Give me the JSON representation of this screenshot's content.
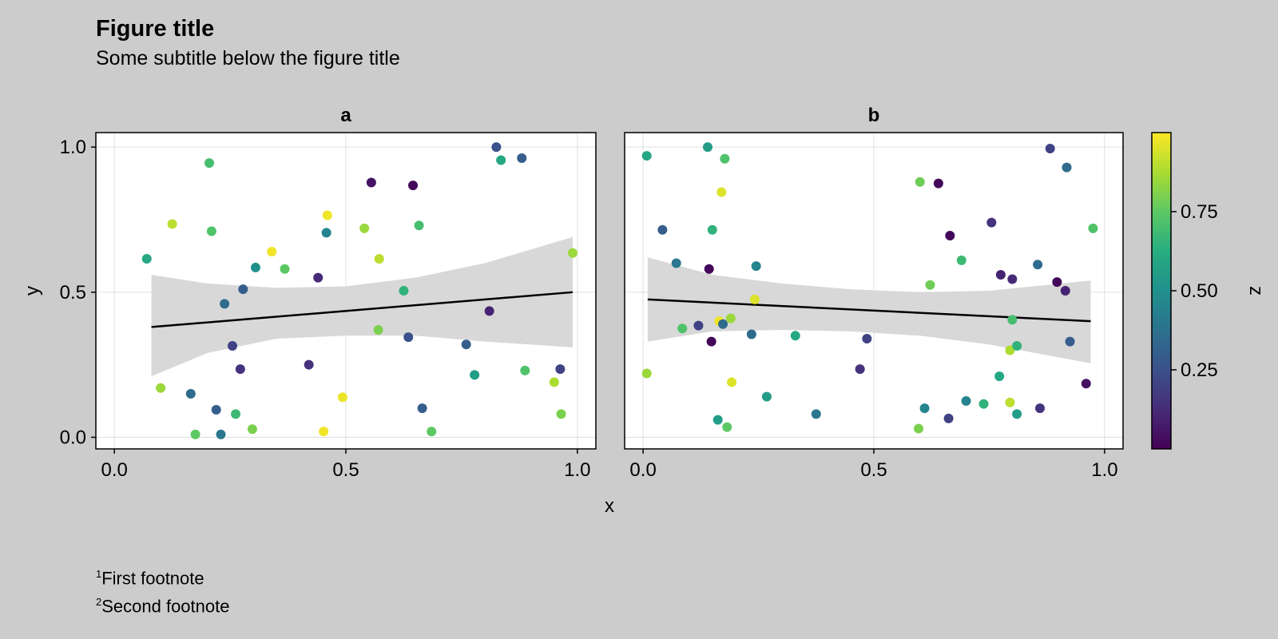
{
  "figure": {
    "title": "Figure title",
    "subtitle": "Some subtitle below the figure title",
    "footnotes": [
      {
        "mark": "1",
        "text": "First footnote"
      },
      {
        "mark": "2",
        "text": "Second footnote"
      }
    ]
  },
  "chart_data": {
    "type": "scatter",
    "xlabel": "x",
    "ylabel": "y",
    "xlim": [
      -0.04,
      1.04
    ],
    "ylim": [
      -0.04,
      1.05
    ],
    "xticks": [
      "0.0",
      "0.5",
      "1.0"
    ],
    "yticks": [
      "0.0",
      "0.5",
      "1.0"
    ],
    "xtick_values": [
      0,
      0.5,
      1
    ],
    "ytick_values": [
      0,
      0.5,
      1
    ],
    "grid": true,
    "colormap": {
      "name": "viridis",
      "label": "z",
      "range": [
        0,
        1
      ],
      "ticks": [
        "0.25",
        "0.50",
        "0.75"
      ],
      "tick_values": [
        0.25,
        0.5,
        0.75
      ],
      "stops": [
        "#440154",
        "#472c7a",
        "#3b518b",
        "#2c718e",
        "#21908d",
        "#27ad81",
        "#5cc863",
        "#aadc32",
        "#fde725"
      ]
    },
    "panels": [
      {
        "title": "a",
        "fit": {
          "x": [
            0.08,
            0.99
          ],
          "y": [
            0.38,
            0.5
          ]
        },
        "band_x": [
          0.08,
          0.2,
          0.35,
          0.5,
          0.65,
          0.8,
          0.99
        ],
        "band_upper": [
          0.56,
          0.53,
          0.515,
          0.52,
          0.55,
          0.6,
          0.69
        ],
        "band_lower": [
          0.21,
          0.29,
          0.34,
          0.35,
          0.35,
          0.33,
          0.31
        ],
        "points": [
          {
            "x": 0.07,
            "y": 0.615,
            "z": 0.6
          },
          {
            "x": 0.1,
            "y": 0.17,
            "z": 0.85
          },
          {
            "x": 0.125,
            "y": 0.735,
            "z": 0.9
          },
          {
            "x": 0.165,
            "y": 0.15,
            "z": 0.35
          },
          {
            "x": 0.175,
            "y": 0.01,
            "z": 0.75
          },
          {
            "x": 0.205,
            "y": 0.945,
            "z": 0.7
          },
          {
            "x": 0.21,
            "y": 0.71,
            "z": 0.72
          },
          {
            "x": 0.22,
            "y": 0.095,
            "z": 0.3
          },
          {
            "x": 0.23,
            "y": 0.01,
            "z": 0.4
          },
          {
            "x": 0.238,
            "y": 0.46,
            "z": 0.35
          },
          {
            "x": 0.255,
            "y": 0.315,
            "z": 0.2
          },
          {
            "x": 0.262,
            "y": 0.08,
            "z": 0.68
          },
          {
            "x": 0.272,
            "y": 0.235,
            "z": 0.15
          },
          {
            "x": 0.278,
            "y": 0.51,
            "z": 0.3
          },
          {
            "x": 0.298,
            "y": 0.028,
            "z": 0.8
          },
          {
            "x": 0.305,
            "y": 0.585,
            "z": 0.5
          },
          {
            "x": 0.34,
            "y": 0.64,
            "z": 0.98
          },
          {
            "x": 0.368,
            "y": 0.58,
            "z": 0.75
          },
          {
            "x": 0.42,
            "y": 0.25,
            "z": 0.15
          },
          {
            "x": 0.44,
            "y": 0.55,
            "z": 0.12
          },
          {
            "x": 0.452,
            "y": 0.02,
            "z": 0.98
          },
          {
            "x": 0.458,
            "y": 0.705,
            "z": 0.45
          },
          {
            "x": 0.46,
            "y": 0.765,
            "z": 0.98
          },
          {
            "x": 0.493,
            "y": 0.138,
            "z": 0.97
          },
          {
            "x": 0.54,
            "y": 0.72,
            "z": 0.85
          },
          {
            "x": 0.555,
            "y": 0.878,
            "z": 0.05
          },
          {
            "x": 0.57,
            "y": 0.37,
            "z": 0.8
          },
          {
            "x": 0.572,
            "y": 0.615,
            "z": 0.9
          },
          {
            "x": 0.625,
            "y": 0.505,
            "z": 0.65
          },
          {
            "x": 0.635,
            "y": 0.345,
            "z": 0.25
          },
          {
            "x": 0.645,
            "y": 0.868,
            "z": 0.02
          },
          {
            "x": 0.658,
            "y": 0.73,
            "z": 0.7
          },
          {
            "x": 0.665,
            "y": 0.1,
            "z": 0.3
          },
          {
            "x": 0.685,
            "y": 0.02,
            "z": 0.75
          },
          {
            "x": 0.76,
            "y": 0.32,
            "z": 0.3
          },
          {
            "x": 0.778,
            "y": 0.215,
            "z": 0.55
          },
          {
            "x": 0.81,
            "y": 0.435,
            "z": 0.1
          },
          {
            "x": 0.825,
            "y": 1.0,
            "z": 0.25
          },
          {
            "x": 0.835,
            "y": 0.955,
            "z": 0.6
          },
          {
            "x": 0.88,
            "y": 0.962,
            "z": 0.3
          },
          {
            "x": 0.887,
            "y": 0.23,
            "z": 0.72
          },
          {
            "x": 0.95,
            "y": 0.19,
            "z": 0.88
          },
          {
            "x": 0.963,
            "y": 0.235,
            "z": 0.2
          },
          {
            "x": 0.965,
            "y": 0.08,
            "z": 0.8
          },
          {
            "x": 0.99,
            "y": 0.635,
            "z": 0.85
          }
        ]
      },
      {
        "title": "b",
        "fit": {
          "x": [
            0.01,
            0.97
          ],
          "y": [
            0.475,
            0.4
          ]
        },
        "band_x": [
          0.01,
          0.15,
          0.3,
          0.45,
          0.6,
          0.75,
          0.97
        ],
        "band_upper": [
          0.62,
          0.56,
          0.53,
          0.51,
          0.5,
          0.505,
          0.54
        ],
        "band_lower": [
          0.33,
          0.365,
          0.37,
          0.365,
          0.35,
          0.32,
          0.255
        ],
        "points": [
          {
            "x": 0.008,
            "y": 0.97,
            "z": 0.6
          },
          {
            "x": 0.008,
            "y": 0.22,
            "z": 0.85
          },
          {
            "x": 0.042,
            "y": 0.715,
            "z": 0.3
          },
          {
            "x": 0.072,
            "y": 0.6,
            "z": 0.4
          },
          {
            "x": 0.085,
            "y": 0.375,
            "z": 0.72
          },
          {
            "x": 0.12,
            "y": 0.385,
            "z": 0.2
          },
          {
            "x": 0.14,
            "y": 1.0,
            "z": 0.55
          },
          {
            "x": 0.143,
            "y": 0.58,
            "z": 0.02
          },
          {
            "x": 0.148,
            "y": 0.33,
            "z": 0.02
          },
          {
            "x": 0.15,
            "y": 0.715,
            "z": 0.65
          },
          {
            "x": 0.162,
            "y": 0.06,
            "z": 0.55
          },
          {
            "x": 0.165,
            "y": 0.4,
            "z": 0.98
          },
          {
            "x": 0.17,
            "y": 0.845,
            "z": 0.95
          },
          {
            "x": 0.173,
            "y": 0.39,
            "z": 0.35
          },
          {
            "x": 0.177,
            "y": 0.96,
            "z": 0.72
          },
          {
            "x": 0.182,
            "y": 0.035,
            "z": 0.75
          },
          {
            "x": 0.19,
            "y": 0.41,
            "z": 0.85
          },
          {
            "x": 0.192,
            "y": 0.19,
            "z": 0.95
          },
          {
            "x": 0.235,
            "y": 0.355,
            "z": 0.35
          },
          {
            "x": 0.242,
            "y": 0.475,
            "z": 0.95
          },
          {
            "x": 0.245,
            "y": 0.59,
            "z": 0.45
          },
          {
            "x": 0.268,
            "y": 0.14,
            "z": 0.55
          },
          {
            "x": 0.33,
            "y": 0.35,
            "z": 0.6
          },
          {
            "x": 0.375,
            "y": 0.08,
            "z": 0.4
          },
          {
            "x": 0.47,
            "y": 0.235,
            "z": 0.15
          },
          {
            "x": 0.485,
            "y": 0.34,
            "z": 0.2
          },
          {
            "x": 0.597,
            "y": 0.03,
            "z": 0.8
          },
          {
            "x": 0.6,
            "y": 0.88,
            "z": 0.78
          },
          {
            "x": 0.61,
            "y": 0.1,
            "z": 0.45
          },
          {
            "x": 0.622,
            "y": 0.525,
            "z": 0.78
          },
          {
            "x": 0.64,
            "y": 0.875,
            "z": 0.02
          },
          {
            "x": 0.662,
            "y": 0.065,
            "z": 0.2
          },
          {
            "x": 0.665,
            "y": 0.695,
            "z": 0.02
          },
          {
            "x": 0.69,
            "y": 0.61,
            "z": 0.68
          },
          {
            "x": 0.7,
            "y": 0.125,
            "z": 0.45
          },
          {
            "x": 0.738,
            "y": 0.115,
            "z": 0.65
          },
          {
            "x": 0.755,
            "y": 0.74,
            "z": 0.15
          },
          {
            "x": 0.772,
            "y": 0.21,
            "z": 0.6
          },
          {
            "x": 0.775,
            "y": 0.56,
            "z": 0.1
          },
          {
            "x": 0.795,
            "y": 0.12,
            "z": 0.9
          },
          {
            "x": 0.795,
            "y": 0.3,
            "z": 0.88
          },
          {
            "x": 0.8,
            "y": 0.405,
            "z": 0.7
          },
          {
            "x": 0.8,
            "y": 0.545,
            "z": 0.12
          },
          {
            "x": 0.81,
            "y": 0.315,
            "z": 0.65
          },
          {
            "x": 0.81,
            "y": 0.08,
            "z": 0.55
          },
          {
            "x": 0.855,
            "y": 0.595,
            "z": 0.35
          },
          {
            "x": 0.86,
            "y": 0.1,
            "z": 0.15
          },
          {
            "x": 0.882,
            "y": 0.995,
            "z": 0.2
          },
          {
            "x": 0.897,
            "y": 0.535,
            "z": 0.02
          },
          {
            "x": 0.915,
            "y": 0.505,
            "z": 0.1
          },
          {
            "x": 0.918,
            "y": 0.93,
            "z": 0.35
          },
          {
            "x": 0.925,
            "y": 0.33,
            "z": 0.3
          },
          {
            "x": 0.96,
            "y": 0.185,
            "z": 0.05
          },
          {
            "x": 0.975,
            "y": 0.72,
            "z": 0.72
          }
        ]
      }
    ]
  }
}
